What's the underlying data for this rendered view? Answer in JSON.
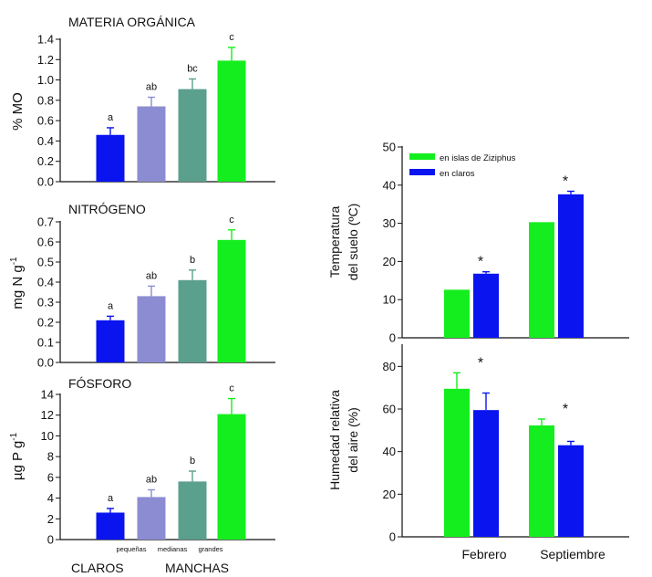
{
  "bottom_labels": {
    "claros": "CLAROS",
    "manchas": "MANCHAS",
    "categories": [
      "pequeñas",
      "medianas",
      "grandes"
    ]
  },
  "chart_data": [
    {
      "type": "bar",
      "title": "MATERIA ORGÁNICA",
      "ylabel": "% MO",
      "categories": [
        "claros",
        "pequeñas",
        "medianas",
        "grandes"
      ],
      "values": [
        0.46,
        0.74,
        0.91,
        1.19
      ],
      "errors": [
        0.07,
        0.09,
        0.1,
        0.13
      ],
      "letters": [
        "a",
        "ab",
        "bc",
        "c"
      ],
      "colors": [
        "#0a14ef",
        "#8c8cd2",
        "#5aa08c",
        "#14ee1e"
      ],
      "ylim": [
        0,
        1.4
      ],
      "yticks": [
        0.0,
        0.2,
        0.4,
        0.6,
        0.8,
        1.0,
        1.2,
        1.4
      ],
      "ytick_labels": [
        "0.0",
        "0.2",
        "0.4",
        "0.6",
        "0.8",
        "1.0",
        "1.2",
        "1.4"
      ]
    },
    {
      "type": "bar",
      "title": "NITRÓGENO",
      "ylabel": "mg N g",
      "ylabel_sup": "-1",
      "categories": [
        "claros",
        "pequeñas",
        "medianas",
        "grandes"
      ],
      "values": [
        0.21,
        0.33,
        0.41,
        0.61
      ],
      "errors": [
        0.02,
        0.05,
        0.05,
        0.05
      ],
      "letters": [
        "a",
        "ab",
        "b",
        "c"
      ],
      "colors": [
        "#0a14ef",
        "#8c8cd2",
        "#5aa08c",
        "#14ee1e"
      ],
      "ylim": [
        0,
        0.7
      ],
      "yticks": [
        0.0,
        0.1,
        0.2,
        0.3,
        0.4,
        0.5,
        0.6,
        0.7
      ],
      "ytick_labels": [
        "0.0",
        "0.1",
        "0.2",
        "0.3",
        "0.4",
        "0.5",
        "0.6",
        "0.7"
      ]
    },
    {
      "type": "bar",
      "title": "FÓSFORO",
      "ylabel": "µg P g",
      "ylabel_sup": "-1",
      "categories": [
        "claros",
        "pequeñas",
        "medianas",
        "grandes"
      ],
      "values": [
        2.6,
        4.1,
        5.6,
        12.1
      ],
      "errors": [
        0.4,
        0.7,
        1.0,
        1.5
      ],
      "letters": [
        "a",
        "ab",
        "b",
        "c"
      ],
      "colors": [
        "#0a14ef",
        "#8c8cd2",
        "#5aa08c",
        "#14ee1e"
      ],
      "ylim": [
        0,
        14
      ],
      "yticks": [
        0,
        2,
        4,
        6,
        8,
        10,
        12,
        14
      ],
      "ytick_labels": [
        "0",
        "2",
        "4",
        "6",
        "8",
        "10",
        "12",
        "14"
      ]
    },
    {
      "type": "bar",
      "ylabel": "Temperatura del suelo (ºC)",
      "ylabel_lines": [
        "Temperatura",
        "del suelo (ºC)"
      ],
      "categories": [
        "Febrero",
        "Septiembre"
      ],
      "series": [
        {
          "name": "en islas de Ziziphus",
          "color": "#14ee1e",
          "values": [
            12.6,
            30.3
          ],
          "errors": [
            0,
            0
          ]
        },
        {
          "name": "en claros",
          "color": "#0a14ef",
          "values": [
            16.8,
            37.6
          ],
          "errors": [
            0.5,
            0.8
          ]
        }
      ],
      "annotations": [
        "*",
        "*"
      ],
      "legend_position": "top-left",
      "ylim": [
        0,
        50
      ],
      "yticks": [
        0,
        10,
        20,
        30,
        40,
        50
      ],
      "ytick_labels": [
        "0",
        "10",
        "20",
        "30",
        "40",
        "50"
      ]
    },
    {
      "type": "bar",
      "ylabel": "Humedad relativa del aire (%)",
      "ylabel_lines": [
        "Humedad relativa",
        "del aire (%)"
      ],
      "categories": [
        "Febrero",
        "Septiembre"
      ],
      "series": [
        {
          "name": "en islas de Ziziphus",
          "color": "#14ee1e",
          "values": [
            69.5,
            52.3
          ],
          "errors": [
            7.5,
            3.0
          ]
        },
        {
          "name": "en claros",
          "color": "#0a14ef",
          "values": [
            59.5,
            43.0
          ],
          "errors": [
            8.0,
            1.8
          ]
        }
      ],
      "annotations": [
        "*",
        "*"
      ],
      "ylim": [
        0,
        90
      ],
      "yticks": [
        0,
        20,
        40,
        60,
        80
      ],
      "ytick_labels": [
        "0",
        "20",
        "40",
        "60",
        "80"
      ]
    }
  ]
}
